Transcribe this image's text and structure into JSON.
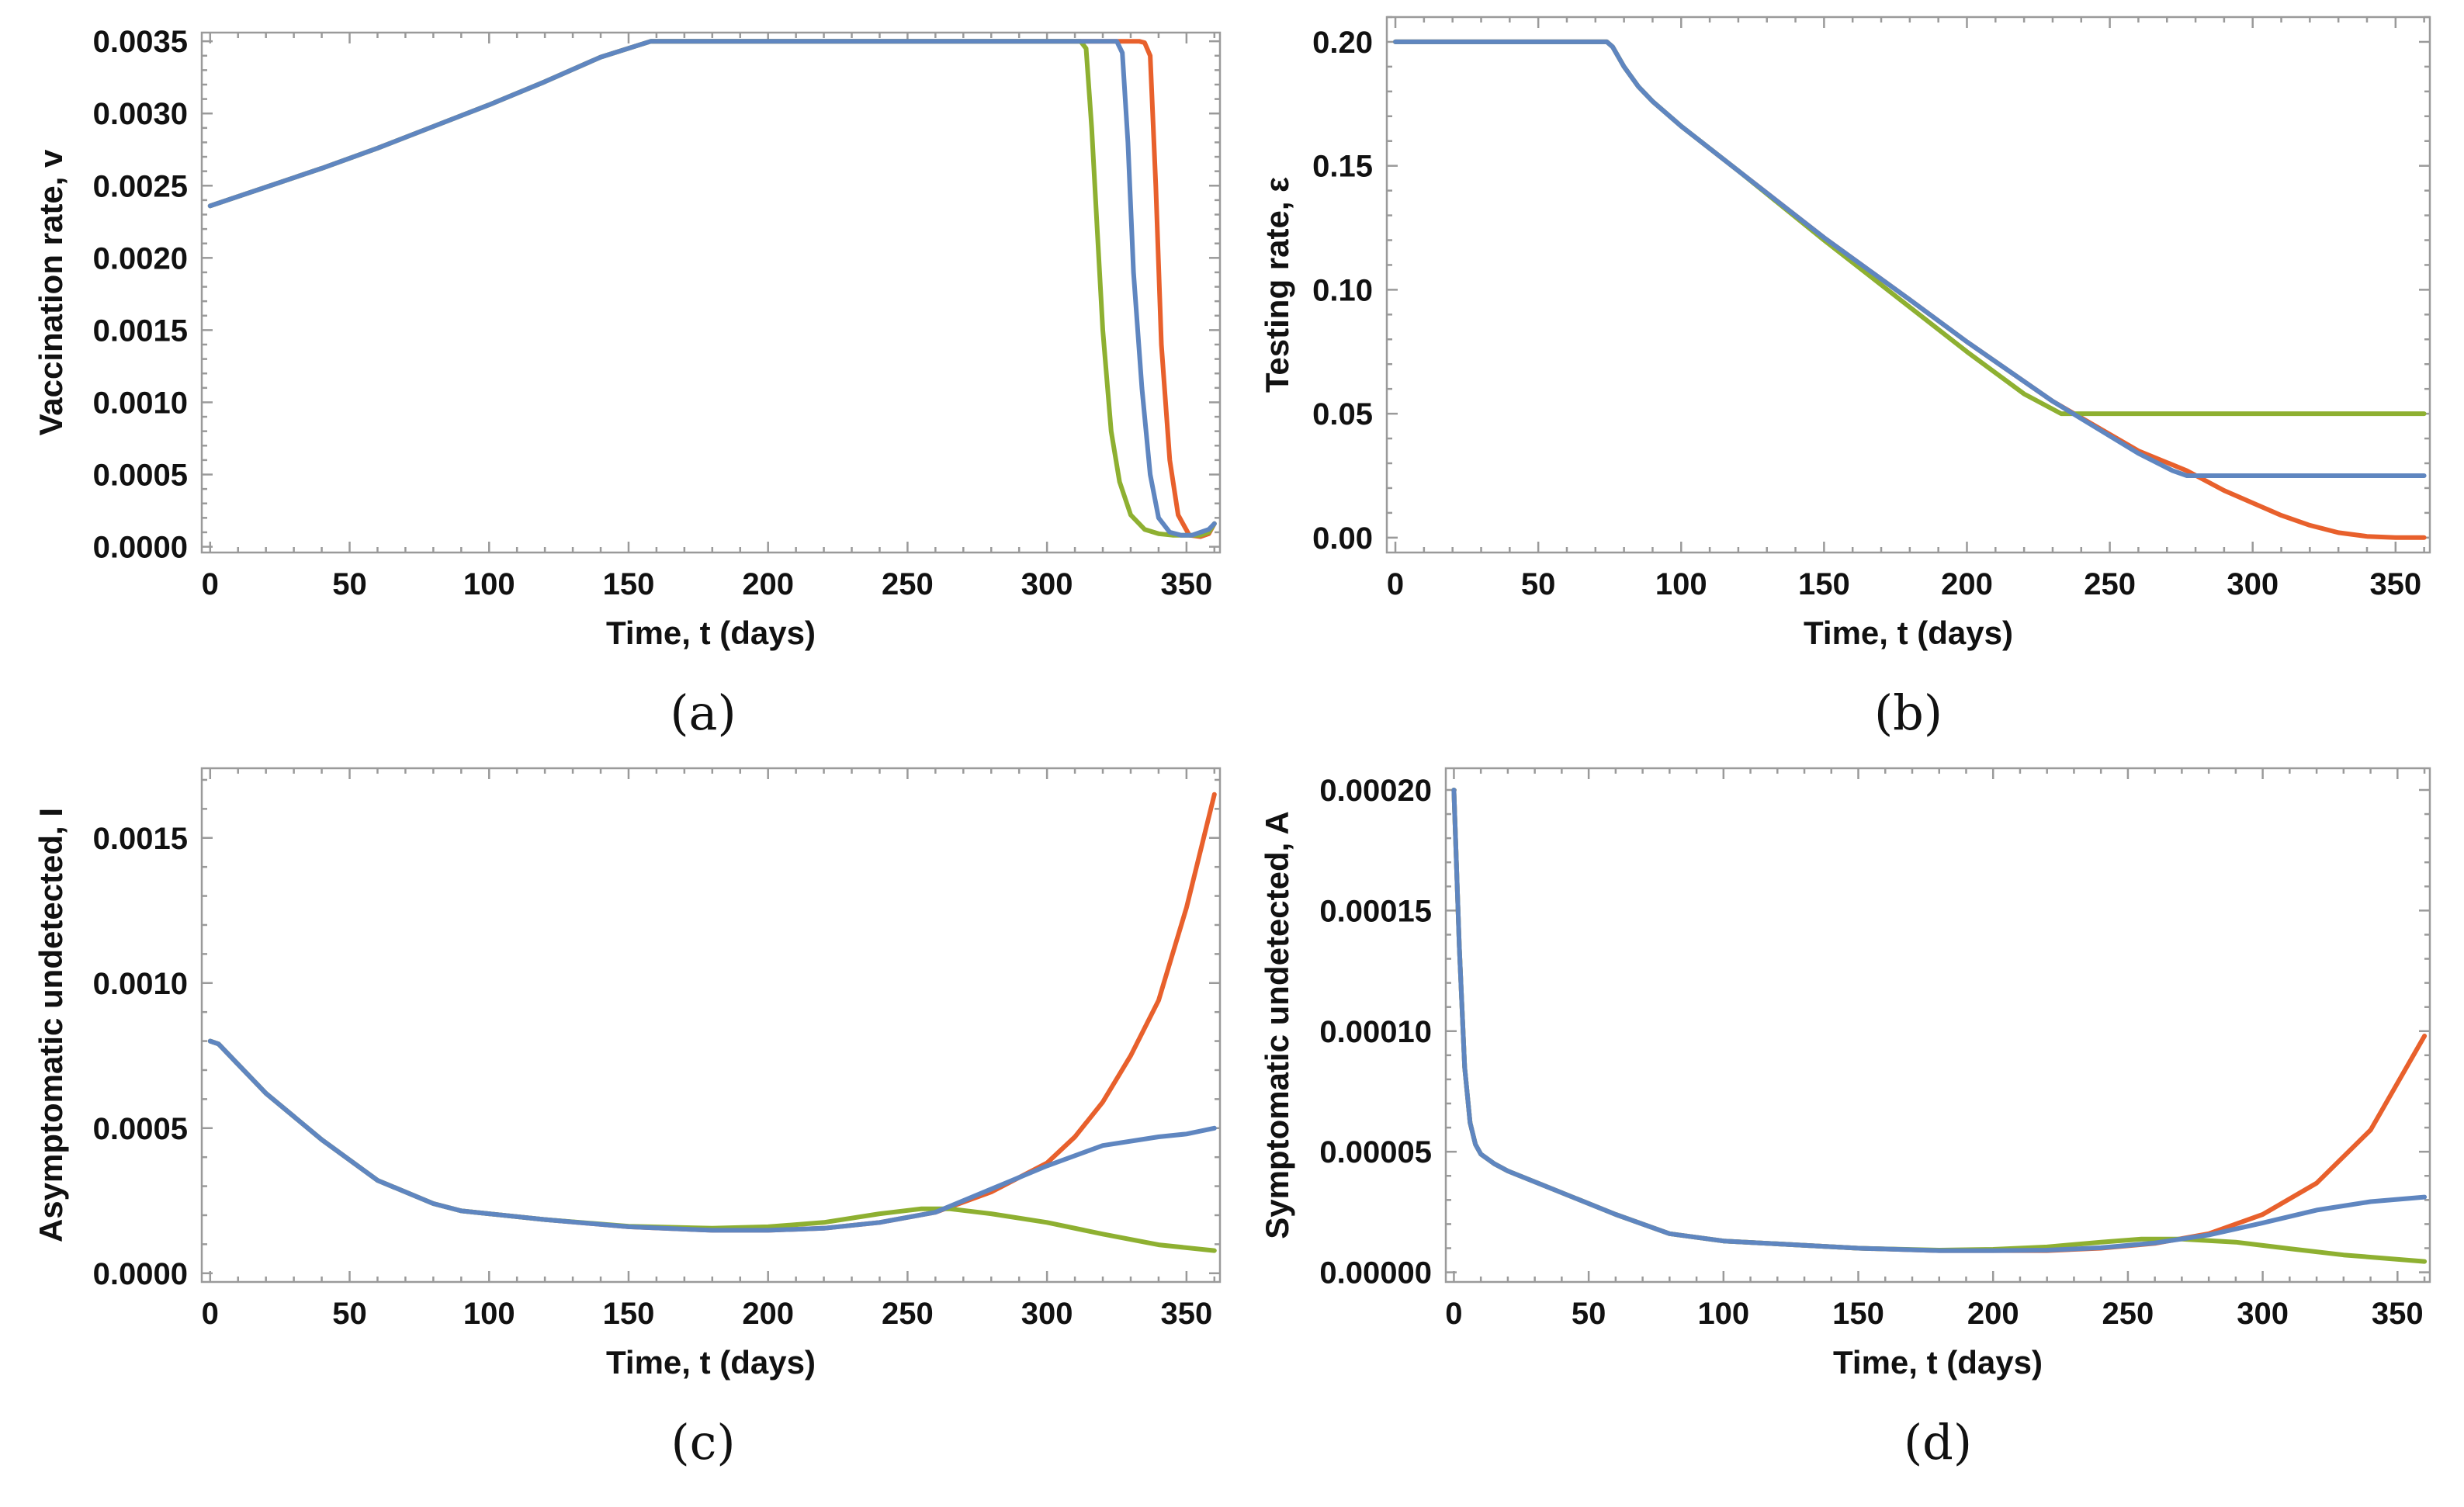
{
  "colors": {
    "red": "#E8602C",
    "green": "#8EB031",
    "blue": "#5F86C0"
  },
  "chart_data": [
    {
      "type": "line",
      "panel": "a",
      "caption": "(a)",
      "xlabel": "Time, t (days)",
      "ylabel": "Vaccination rate, v",
      "xlim": [
        -3,
        362
      ],
      "ylim": [
        -4e-05,
        0.00356
      ],
      "xticks": [
        0,
        50,
        100,
        150,
        200,
        250,
        300,
        350
      ],
      "xtick_labels": [
        "0",
        "50",
        "100",
        "150",
        "200",
        "250",
        "300",
        "350"
      ],
      "yticks": [
        0,
        0.0005,
        0.001,
        0.0015,
        0.002,
        0.0025,
        0.003,
        0.0035
      ],
      "ytick_labels": [
        "0.0000",
        "0.0005",
        "0.0010",
        "0.0015",
        "0.0020",
        "0.0025",
        "0.0030",
        "0.0035"
      ],
      "series": [
        {
          "name": "red",
          "color": "red",
          "x": [
            0,
            20,
            40,
            60,
            80,
            100,
            120,
            140,
            158,
            160,
            200,
            250,
            300,
            320,
            330,
            333,
            335,
            337,
            339,
            341,
            344,
            347,
            351,
            355,
            358,
            360
          ],
          "y": [
            0.00236,
            0.00249,
            0.00262,
            0.00276,
            0.00291,
            0.00306,
            0.00322,
            0.00339,
            0.0035,
            0.0035,
            0.0035,
            0.0035,
            0.0035,
            0.0035,
            0.0035,
            0.0035,
            0.00349,
            0.0034,
            0.0025,
            0.0014,
            0.0006,
            0.00022,
            8e-05,
            7e-05,
            9e-05,
            0.00016
          ]
        },
        {
          "name": "green",
          "color": "green",
          "x": [
            0,
            20,
            40,
            60,
            80,
            100,
            120,
            140,
            158,
            160,
            200,
            250,
            300,
            312,
            314,
            316,
            318,
            320,
            323,
            326,
            330,
            335,
            340,
            345,
            350,
            355,
            358,
            360
          ],
          "y": [
            0.00236,
            0.00249,
            0.00262,
            0.00276,
            0.00291,
            0.00306,
            0.00322,
            0.00339,
            0.0035,
            0.0035,
            0.0035,
            0.0035,
            0.0035,
            0.0035,
            0.00345,
            0.0029,
            0.0022,
            0.0015,
            0.0008,
            0.00045,
            0.00022,
            0.00012,
            9e-05,
            8e-05,
            8e-05,
            8e-05,
            0.0001,
            0.00016
          ]
        },
        {
          "name": "blue",
          "color": "blue",
          "x": [
            0,
            20,
            40,
            60,
            80,
            100,
            120,
            140,
            158,
            160,
            200,
            250,
            300,
            320,
            325,
            327,
            329,
            331,
            334,
            337,
            340,
            344,
            348,
            352,
            355,
            358,
            360
          ],
          "y": [
            0.00236,
            0.00249,
            0.00262,
            0.00276,
            0.00291,
            0.00306,
            0.00322,
            0.00339,
            0.0035,
            0.0035,
            0.0035,
            0.0035,
            0.0035,
            0.0035,
            0.0035,
            0.00342,
            0.0028,
            0.0019,
            0.0011,
            0.0005,
            0.0002,
            0.0001,
            8e-05,
            8e-05,
            0.0001,
            0.00012,
            0.00016
          ]
        }
      ]
    },
    {
      "type": "line",
      "panel": "b",
      "caption": "(b)",
      "xlabel": "Time, t (days)",
      "ylabel": "Testing rate, ε",
      "xlim": [
        -3,
        362
      ],
      "ylim": [
        -0.006,
        0.21
      ],
      "xticks": [
        0,
        50,
        100,
        150,
        200,
        250,
        300,
        350
      ],
      "xtick_labels": [
        "0",
        "50",
        "100",
        "150",
        "200",
        "250",
        "300",
        "350"
      ],
      "yticks": [
        0,
        0.05,
        0.1,
        0.15,
        0.2
      ],
      "ytick_labels": [
        "0.00",
        "0.05",
        "0.10",
        "0.15",
        "0.20"
      ],
      "series": [
        {
          "name": "red",
          "color": "red",
          "x": [
            0,
            74,
            76,
            80,
            85,
            90,
            100,
            120,
            150,
            180,
            200,
            230,
            260,
            277,
            290,
            300,
            310,
            320,
            330,
            340,
            350,
            360
          ],
          "y": [
            0.2,
            0.2,
            0.198,
            0.19,
            0.182,
            0.176,
            0.166,
            0.148,
            0.121,
            0.096,
            0.079,
            0.055,
            0.035,
            0.027,
            0.019,
            0.014,
            0.009,
            0.005,
            0.002,
            0.0005,
            0.0,
            0.0
          ]
        },
        {
          "name": "green",
          "color": "green",
          "x": [
            0,
            74,
            76,
            80,
            85,
            90,
            100,
            120,
            150,
            180,
            200,
            220,
            233,
            250,
            300,
            360
          ],
          "y": [
            0.2,
            0.2,
            0.198,
            0.19,
            0.182,
            0.176,
            0.166,
            0.148,
            0.12,
            0.093,
            0.075,
            0.058,
            0.05,
            0.05,
            0.05,
            0.05
          ]
        },
        {
          "name": "blue",
          "color": "blue",
          "x": [
            0,
            74,
            76,
            80,
            85,
            90,
            100,
            120,
            150,
            180,
            200,
            230,
            260,
            272,
            277,
            300,
            360
          ],
          "y": [
            0.2,
            0.2,
            0.198,
            0.19,
            0.182,
            0.176,
            0.166,
            0.148,
            0.121,
            0.096,
            0.079,
            0.055,
            0.034,
            0.027,
            0.025,
            0.025,
            0.025
          ]
        }
      ]
    },
    {
      "type": "line",
      "panel": "c",
      "caption": "(c)",
      "xlabel": "Time, t (days)",
      "ylabel": "Asymptomatic undetected, I",
      "xlim": [
        -3,
        362
      ],
      "ylim": [
        -3e-05,
        0.00174
      ],
      "xticks": [
        0,
        50,
        100,
        150,
        200,
        250,
        300,
        350
      ],
      "xtick_labels": [
        "0",
        "50",
        "100",
        "150",
        "200",
        "250",
        "300",
        "350"
      ],
      "yticks": [
        0,
        0.0005,
        0.001,
        0.0015
      ],
      "ytick_labels": [
        "0.0000",
        "0.0005",
        "0.0010",
        "0.0015"
      ],
      "series": [
        {
          "name": "red",
          "color": "red",
          "x": [
            0,
            3,
            10,
            20,
            40,
            60,
            80,
            90,
            100,
            120,
            150,
            180,
            200,
            220,
            240,
            260,
            280,
            300,
            310,
            320,
            330,
            340,
            350,
            360
          ],
          "y": [
            0.0008,
            0.00079,
            0.00072,
            0.00062,
            0.00046,
            0.00032,
            0.00024,
            0.000215,
            0.000205,
            0.000185,
            0.00016,
            0.000148,
            0.000148,
            0.000155,
            0.000175,
            0.00021,
            0.00028,
            0.00038,
            0.00047,
            0.00059,
            0.00075,
            0.00094,
            0.00126,
            0.00165
          ]
        },
        {
          "name": "green",
          "color": "green",
          "x": [
            0,
            3,
            10,
            20,
            40,
            60,
            80,
            90,
            100,
            120,
            150,
            180,
            200,
            220,
            240,
            255,
            265,
            280,
            300,
            320,
            340,
            360
          ],
          "y": [
            0.0008,
            0.00079,
            0.00072,
            0.00062,
            0.00046,
            0.00032,
            0.00024,
            0.000215,
            0.000205,
            0.000185,
            0.000162,
            0.000155,
            0.00016,
            0.000175,
            0.000205,
            0.000222,
            0.000222,
            0.000205,
            0.000175,
            0.000135,
            9.8e-05,
            7.8e-05
          ]
        },
        {
          "name": "blue",
          "color": "blue",
          "x": [
            0,
            3,
            10,
            20,
            40,
            60,
            80,
            90,
            100,
            120,
            150,
            180,
            200,
            220,
            240,
            260,
            280,
            300,
            320,
            340,
            350,
            360
          ],
          "y": [
            0.0008,
            0.00079,
            0.00072,
            0.00062,
            0.00046,
            0.00032,
            0.00024,
            0.000215,
            0.000205,
            0.000185,
            0.00016,
            0.000148,
            0.000148,
            0.000155,
            0.000175,
            0.00021,
            0.00029,
            0.00037,
            0.00044,
            0.00047,
            0.00048,
            0.0005
          ]
        }
      ]
    },
    {
      "type": "line",
      "panel": "d",
      "caption": "(d)",
      "xlabel": "Time, t (days)",
      "ylabel": "Symptomatic undetected, A",
      "xlim": [
        -3,
        362
      ],
      "ylim": [
        -4e-06,
        0.000209
      ],
      "xticks": [
        0,
        50,
        100,
        150,
        200,
        250,
        300,
        350
      ],
      "xtick_labels": [
        "0",
        "50",
        "100",
        "150",
        "200",
        "250",
        "300",
        "350"
      ],
      "yticks": [
        0,
        5e-05,
        0.0001,
        0.00015,
        0.0002
      ],
      "ytick_labels": [
        "0.00000",
        "0.00005",
        "0.00010",
        "0.00015",
        "0.00020"
      ],
      "series": [
        {
          "name": "red",
          "color": "red",
          "x": [
            0,
            2,
            4,
            6,
            8,
            10,
            15,
            20,
            40,
            60,
            80,
            100,
            150,
            180,
            200,
            220,
            240,
            260,
            280,
            300,
            320,
            340,
            360
          ],
          "y": [
            0.0002,
            0.000135,
            8.5e-05,
            6.2e-05,
            5.3e-05,
            4.9e-05,
            4.5e-05,
            4.2e-05,
            3.3e-05,
            2.4e-05,
            1.6e-05,
            1.3e-05,
            1e-05,
            9e-06,
            9e-06,
            9e-06,
            1e-05,
            1.2e-05,
            1.6e-05,
            2.4e-05,
            3.7e-05,
            5.9e-05,
            9.8e-05
          ]
        },
        {
          "name": "green",
          "color": "green",
          "x": [
            0,
            2,
            4,
            6,
            8,
            10,
            15,
            20,
            40,
            60,
            80,
            100,
            150,
            180,
            200,
            220,
            240,
            255,
            270,
            290,
            310,
            330,
            360
          ],
          "y": [
            0.0002,
            0.000135,
            8.5e-05,
            6.2e-05,
            5.3e-05,
            4.9e-05,
            4.5e-05,
            4.2e-05,
            3.3e-05,
            2.4e-05,
            1.6e-05,
            1.3e-05,
            1e-05,
            9.2e-06,
            9.5e-06,
            1.05e-05,
            1.25e-05,
            1.38e-05,
            1.38e-05,
            1.25e-05,
            9.8e-06,
            7.2e-06,
            4.5e-06
          ]
        },
        {
          "name": "blue",
          "color": "blue",
          "x": [
            0,
            2,
            4,
            6,
            8,
            10,
            15,
            20,
            40,
            60,
            80,
            100,
            150,
            180,
            200,
            220,
            240,
            260,
            280,
            300,
            320,
            340,
            360
          ],
          "y": [
            0.0002,
            0.000135,
            8.5e-05,
            6.2e-05,
            5.3e-05,
            4.9e-05,
            4.5e-05,
            4.2e-05,
            3.3e-05,
            2.4e-05,
            1.6e-05,
            1.3e-05,
            1e-05,
            9e-06,
            9e-06,
            9.2e-06,
            1.02e-05,
            1.22e-05,
            1.55e-05,
            2.05e-05,
            2.58e-05,
            2.93e-05,
            3.12e-05
          ]
        }
      ]
    }
  ]
}
